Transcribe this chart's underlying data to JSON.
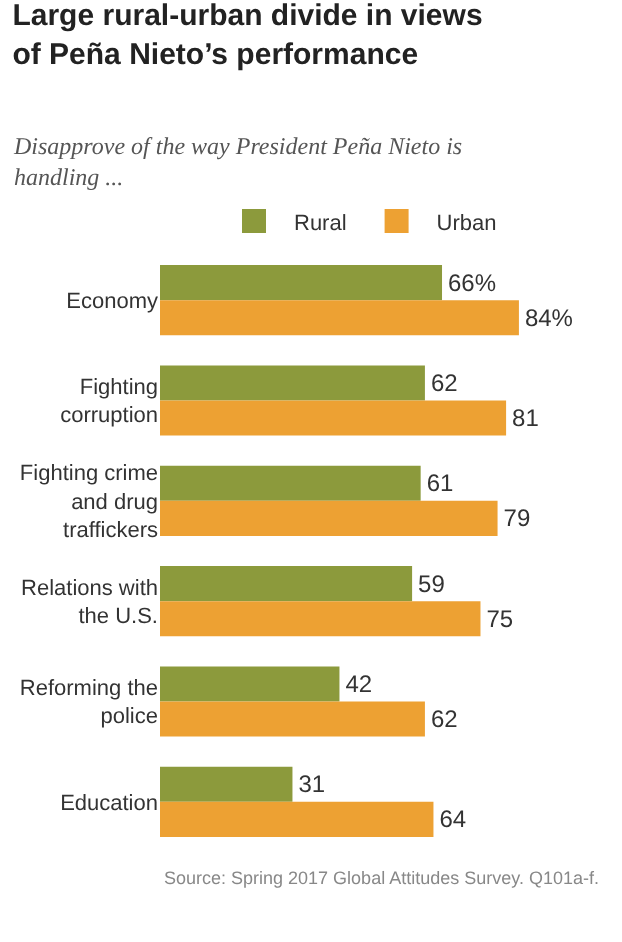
{
  "chart_data": {
    "type": "bar",
    "orientation": "horizontal",
    "title": "Large rural-urban divide in views of Peña Nieto’s performance",
    "subtitle": "Disapprove of the way President Peña Nieto is handling ...",
    "categories": [
      "Economy",
      "Fighting corruption",
      "Fighting crime and drug traffickers",
      "Relations with the U.S.",
      "Reforming the police",
      "Education"
    ],
    "series": [
      {
        "name": "Rural",
        "color": "#8c9a3c",
        "values": [
          66,
          62,
          61,
          59,
          42,
          31
        ],
        "value_labels": [
          "66%",
          "62",
          "61",
          "59",
          "42",
          "31"
        ]
      },
      {
        "name": "Urban",
        "color": "#eda133",
        "values": [
          84,
          81,
          79,
          75,
          62,
          64
        ],
        "value_labels": [
          "84%",
          "81",
          "79",
          "75",
          "62",
          "64"
        ]
      }
    ],
    "legend": "top",
    "grid": false,
    "annotations": [
      "Source: Spring 2017 Global Attitudes Survey. Q101a-f."
    ]
  }
}
